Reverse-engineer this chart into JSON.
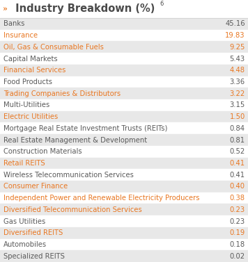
{
  "title": " Industry Breakdown (%)",
  "superscript": "6",
  "title_arrow": "»",
  "title_color": "#4a4a4a",
  "title_arrow_color": "#e87722",
  "title_font_size": 10.5,
  "rows": [
    {
      "label": "Banks",
      "value": "45.16",
      "bg": "#e8e8e8",
      "text_color": "#5a5a5a"
    },
    {
      "label": "Insurance",
      "value": "19.83",
      "bg": "#ffffff",
      "text_color": "#e87722"
    },
    {
      "label": "Oil, Gas & Consumable Fuels",
      "value": "9.25",
      "bg": "#e8e8e8",
      "text_color": "#e87722"
    },
    {
      "label": "Capital Markets",
      "value": "5.43",
      "bg": "#ffffff",
      "text_color": "#5a5a5a"
    },
    {
      "label": "Financial Services",
      "value": "4.48",
      "bg": "#e8e8e8",
      "text_color": "#e87722"
    },
    {
      "label": "Food Products",
      "value": "3.36",
      "bg": "#ffffff",
      "text_color": "#5a5a5a"
    },
    {
      "label": "Trading Companies & Distributors",
      "value": "3.22",
      "bg": "#e8e8e8",
      "text_color": "#e87722"
    },
    {
      "label": "Multi-Utilities",
      "value": "3.15",
      "bg": "#ffffff",
      "text_color": "#5a5a5a"
    },
    {
      "label": "Electric Utilities",
      "value": "1.50",
      "bg": "#e8e8e8",
      "text_color": "#e87722"
    },
    {
      "label": "Mortgage Real Estate Investment Trusts (REITs)",
      "value": "0.84",
      "bg": "#ffffff",
      "text_color": "#5a5a5a"
    },
    {
      "label": "Real Estate Management & Development",
      "value": "0.81",
      "bg": "#e8e8e8",
      "text_color": "#5a5a5a"
    },
    {
      "label": "Construction Materials",
      "value": "0.52",
      "bg": "#ffffff",
      "text_color": "#5a5a5a"
    },
    {
      "label": "Retail REITS",
      "value": "0.41",
      "bg": "#e8e8e8",
      "text_color": "#e87722"
    },
    {
      "label": "Wireless Telecommunication Services",
      "value": "0.41",
      "bg": "#ffffff",
      "text_color": "#5a5a5a"
    },
    {
      "label": "Consumer Finance",
      "value": "0.40",
      "bg": "#e8e8e8",
      "text_color": "#e87722"
    },
    {
      "label": "Independent Power and Renewable Electricity Producers",
      "value": "0.38",
      "bg": "#ffffff",
      "text_color": "#e87722"
    },
    {
      "label": "Diversified Telecommunication Services",
      "value": "0.23",
      "bg": "#e8e8e8",
      "text_color": "#e87722"
    },
    {
      "label": "Gas Utilities",
      "value": "0.23",
      "bg": "#ffffff",
      "text_color": "#5a5a5a"
    },
    {
      "label": "Diversified REITS",
      "value": "0.19",
      "bg": "#e8e8e8",
      "text_color": "#e87722"
    },
    {
      "label": "Automobiles",
      "value": "0.18",
      "bg": "#ffffff",
      "text_color": "#5a5a5a"
    },
    {
      "label": "Specialized REITS",
      "value": "0.02",
      "bg": "#e8e8e8",
      "text_color": "#5a5a5a"
    }
  ],
  "font_size": 7.2,
  "fig_width": 3.56,
  "fig_height": 3.77,
  "dpi": 100
}
